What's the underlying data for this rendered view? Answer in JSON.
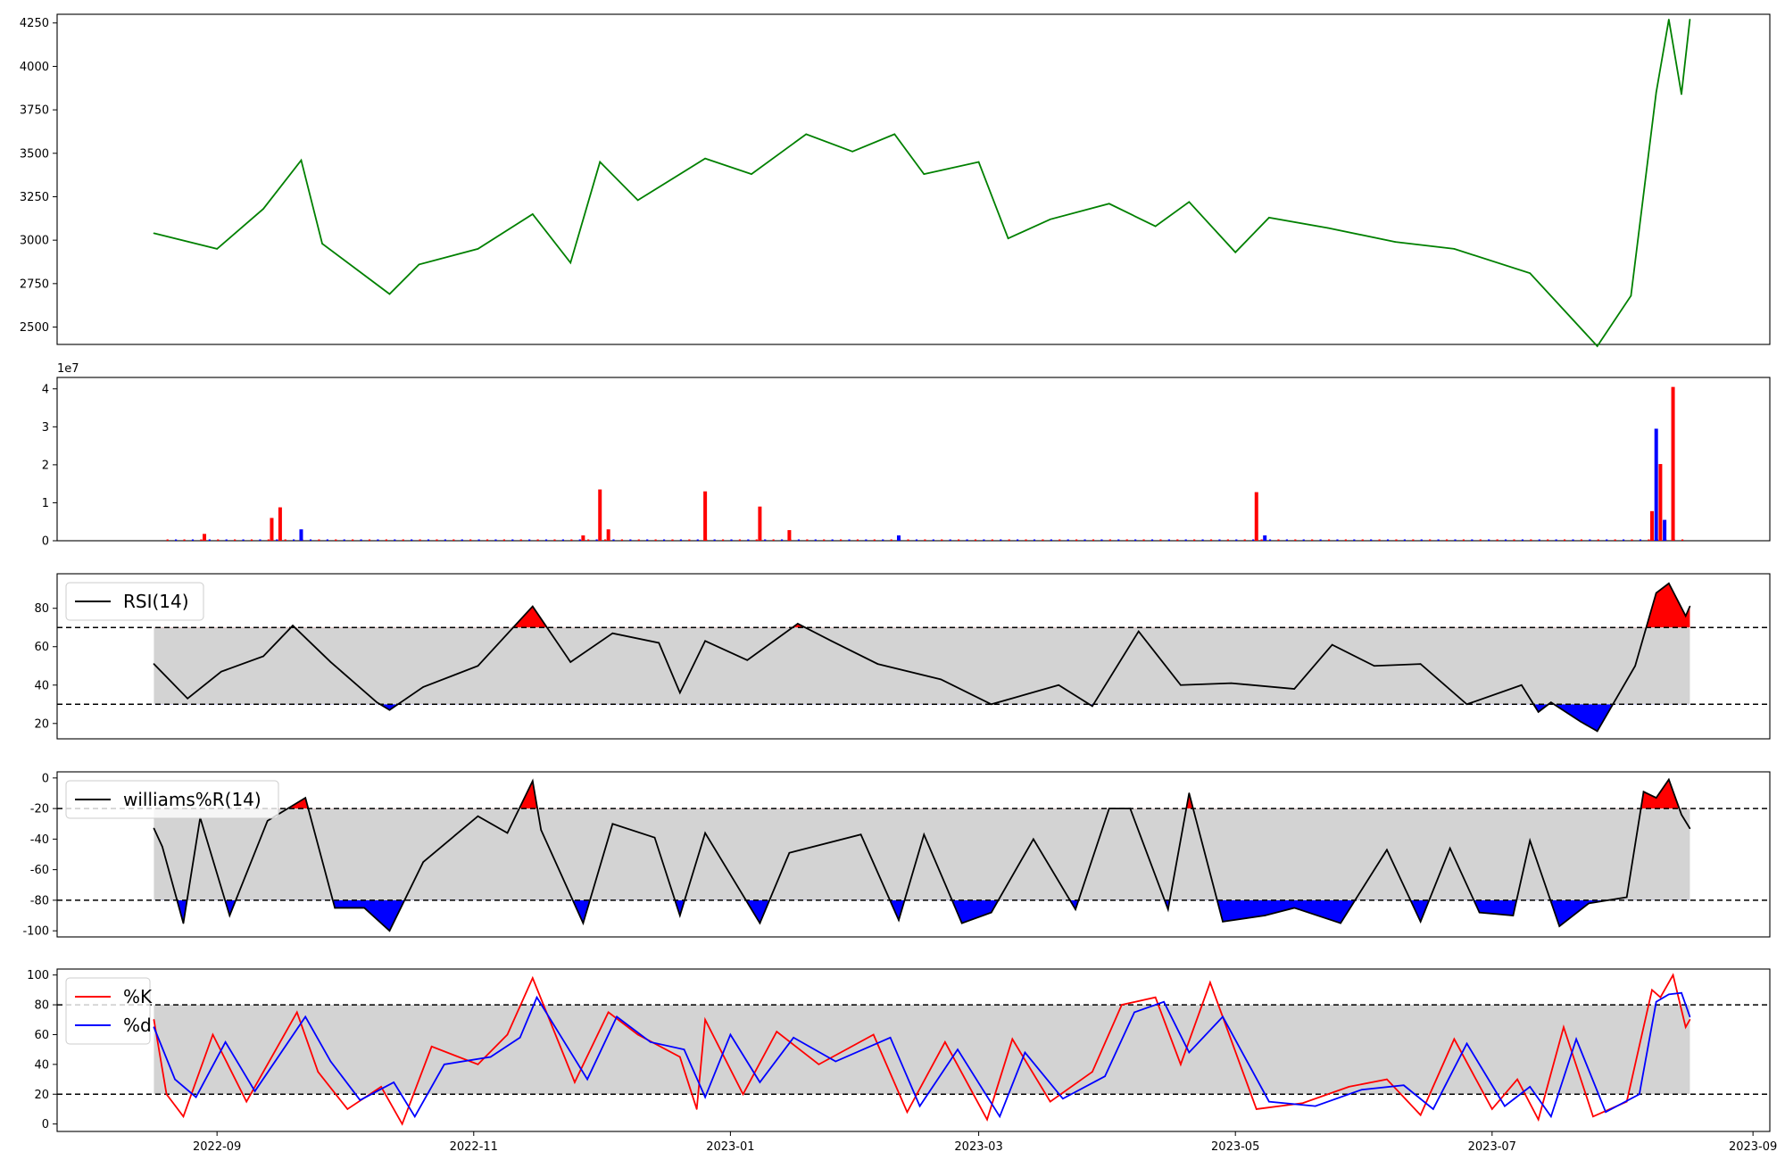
{
  "chart_data": [
    {
      "type": "line",
      "panel": "price",
      "color": "#008000",
      "ylim": [
        2400,
        4300
      ],
      "yticks": [
        2500,
        2750,
        3000,
        3250,
        3500,
        3750,
        4000,
        4250
      ],
      "x": [
        "2022-08-17",
        "2022-09-01",
        "2022-09-12",
        "2022-09-21",
        "2022-09-26",
        "2022-10-12",
        "2022-10-19",
        "2022-11-02",
        "2022-11-15",
        "2022-11-24",
        "2022-12-01",
        "2022-12-10",
        "2022-12-26",
        "2023-01-06",
        "2023-01-19",
        "2023-01-30",
        "2023-02-09",
        "2023-02-16",
        "2023-03-01",
        "2023-03-08",
        "2023-03-18",
        "2023-04-01",
        "2023-04-12",
        "2023-04-20",
        "2023-05-01",
        "2023-05-09",
        "2023-05-23",
        "2023-06-08",
        "2023-06-22",
        "2023-07-10",
        "2023-07-26",
        "2023-08-03",
        "2023-08-09",
        "2023-08-12",
        "2023-08-15",
        "2023-08-17"
      ],
      "y": [
        3040,
        2950,
        3180,
        3460,
        2980,
        2690,
        2860,
        2950,
        3150,
        2870,
        3450,
        3230,
        3470,
        3380,
        3610,
        3510,
        3610,
        3380,
        3450,
        3010,
        3120,
        3210,
        3080,
        3220,
        2930,
        3130,
        3070,
        2990,
        2950,
        2810,
        2390,
        2680,
        3850,
        4270,
        3840,
        4270
      ]
    },
    {
      "type": "bar",
      "panel": "volume",
      "exponent_label": "1e7",
      "ylim": [
        0,
        4.3
      ],
      "yticks": [
        0,
        1,
        2,
        3,
        4
      ],
      "colors": {
        "up": "#ff0000",
        "down": "#0000ff"
      },
      "x": [
        "2022-08-29",
        "2022-09-14",
        "2022-09-16",
        "2022-09-21",
        "2022-11-27",
        "2022-12-01",
        "2022-12-03",
        "2022-12-26",
        "2023-01-08",
        "2023-01-15",
        "2023-02-10",
        "2023-05-06",
        "2023-05-08",
        "2023-08-08",
        "2023-08-09",
        "2023-08-10",
        "2023-08-11",
        "2023-08-13"
      ],
      "values": [
        0.18,
        0.6,
        0.88,
        0.3,
        0.14,
        1.35,
        0.3,
        1.3,
        0.9,
        0.28,
        0.14,
        1.28,
        0.14,
        0.78,
        2.95,
        2.02,
        0.55,
        4.05
      ],
      "directions": [
        "up",
        "up",
        "up",
        "down",
        "up",
        "up",
        "up",
        "up",
        "up",
        "up",
        "down",
        "up",
        "down",
        "up",
        "down",
        "up",
        "down",
        "up"
      ]
    },
    {
      "type": "line",
      "panel": "rsi",
      "legend": "RSI(14)",
      "ylim": [
        12,
        98
      ],
      "yticks": [
        20,
        40,
        60,
        80
      ],
      "upper": 70,
      "lower": 30,
      "x": [
        "2022-08-17",
        "2022-08-25",
        "2022-09-02",
        "2022-09-12",
        "2022-09-19",
        "2022-09-28",
        "2022-10-09",
        "2022-10-12",
        "2022-10-20",
        "2022-11-02",
        "2022-11-15",
        "2022-11-24",
        "2022-12-04",
        "2022-12-15",
        "2022-12-20",
        "2022-12-26",
        "2023-01-05",
        "2023-01-17",
        "2023-01-25",
        "2023-02-05",
        "2023-02-20",
        "2023-03-04",
        "2023-03-20",
        "2023-03-28",
        "2023-04-08",
        "2023-04-18",
        "2023-04-30",
        "2023-05-15",
        "2023-05-24",
        "2023-06-03",
        "2023-06-14",
        "2023-06-25",
        "2023-07-08",
        "2023-07-12",
        "2023-07-15",
        "2023-07-22",
        "2023-07-26",
        "2023-08-04",
        "2023-08-09",
        "2023-08-12",
        "2023-08-16",
        "2023-08-17"
      ],
      "y": [
        51,
        33,
        47,
        55,
        71,
        52,
        31,
        27,
        39,
        50,
        81,
        52,
        67,
        62,
        36,
        63,
        53,
        72,
        63,
        51,
        43,
        30,
        40,
        29,
        68,
        40,
        41,
        38,
        61,
        50,
        51,
        30,
        40,
        26,
        31,
        21,
        16,
        50,
        88,
        93,
        76,
        81
      ]
    },
    {
      "type": "line",
      "panel": "williams",
      "legend": "williams%R(14)",
      "ylim": [
        -104,
        4
      ],
      "yticks": [
        -100,
        -80,
        -60,
        -40,
        -20,
        0
      ],
      "upper": -20,
      "lower": -80,
      "x": [
        "2022-08-17",
        "2022-08-19",
        "2022-08-24",
        "2022-08-28",
        "2022-09-04",
        "2022-09-13",
        "2022-09-22",
        "2022-09-29",
        "2022-10-06",
        "2022-10-12",
        "2022-10-20",
        "2022-11-02",
        "2022-11-09",
        "2022-11-15",
        "2022-11-17",
        "2022-11-27",
        "2022-12-04",
        "2022-12-14",
        "2022-12-20",
        "2022-12-26",
        "2023-01-08",
        "2023-01-15",
        "2023-02-01",
        "2023-02-10",
        "2023-02-16",
        "2023-02-25",
        "2023-03-04",
        "2023-03-14",
        "2023-03-24",
        "2023-04-01",
        "2023-04-06",
        "2023-04-15",
        "2023-04-20",
        "2023-04-28",
        "2023-05-08",
        "2023-05-15",
        "2023-05-26",
        "2023-06-06",
        "2023-06-14",
        "2023-06-21",
        "2023-06-28",
        "2023-07-06",
        "2023-07-10",
        "2023-07-17",
        "2023-07-24",
        "2023-08-02",
        "2023-08-06",
        "2023-08-09",
        "2023-08-12",
        "2023-08-15",
        "2023-08-17"
      ],
      "y": [
        -33,
        -45,
        -95,
        -26,
        -90,
        -28,
        -13,
        -85,
        -85,
        -100,
        -55,
        -25,
        -36,
        -2,
        -34,
        -95,
        -30,
        -39,
        -90,
        -36,
        -95,
        -49,
        -37,
        -93,
        -37,
        -95,
        -88,
        -40,
        -86,
        -20,
        -20,
        -86,
        -10,
        -94,
        -90,
        -85,
        -95,
        -47,
        -94,
        -46,
        -88,
        -90,
        -41,
        -97,
        -82,
        -78,
        -9,
        -13,
        -1,
        -24,
        -33
      ]
    },
    {
      "type": "line",
      "panel": "stochastic",
      "ylim": [
        -5,
        104
      ],
      "yticks": [
        0,
        20,
        40,
        60,
        80,
        100
      ],
      "upper": 80,
      "lower": 20,
      "series": [
        {
          "name": "%K",
          "color": "#ff0000",
          "x": [
            "2022-08-17",
            "2022-08-20",
            "2022-08-24",
            "2022-08-31",
            "2022-09-08",
            "2022-09-20",
            "2022-09-25",
            "2022-10-02",
            "2022-10-10",
            "2022-10-15",
            "2022-10-22",
            "2022-11-02",
            "2022-11-09",
            "2022-11-15",
            "2022-11-25",
            "2022-12-03",
            "2022-12-10",
            "2022-12-20",
            "2022-12-24",
            "2022-12-26",
            "2023-01-04",
            "2023-01-12",
            "2023-01-22",
            "2023-02-04",
            "2023-02-12",
            "2023-02-21",
            "2023-03-03",
            "2023-03-09",
            "2023-03-18",
            "2023-03-28",
            "2023-04-04",
            "2023-04-12",
            "2023-04-18",
            "2023-04-25",
            "2023-05-06",
            "2023-05-17",
            "2023-05-28",
            "2023-06-06",
            "2023-06-14",
            "2023-06-22",
            "2023-07-01",
            "2023-07-07",
            "2023-07-12",
            "2023-07-18",
            "2023-07-25",
            "2023-08-02",
            "2023-08-08",
            "2023-08-10",
            "2023-08-13",
            "2023-08-16",
            "2023-08-17"
          ],
          "y": [
            70,
            20,
            5,
            60,
            15,
            75,
            35,
            10,
            25,
            0,
            52,
            40,
            60,
            98,
            28,
            75,
            60,
            45,
            10,
            70,
            20,
            62,
            40,
            60,
            8,
            55,
            3,
            57,
            15,
            35,
            80,
            85,
            40,
            95,
            10,
            14,
            25,
            30,
            6,
            57,
            10,
            30,
            3,
            65,
            5,
            15,
            90,
            85,
            100,
            65,
            70
          ]
        },
        {
          "name": "%d",
          "color": "#0000ff",
          "x": [
            "2022-08-17",
            "2022-08-22",
            "2022-08-27",
            "2022-09-03",
            "2022-09-10",
            "2022-09-22",
            "2022-09-28",
            "2022-10-05",
            "2022-10-13",
            "2022-10-18",
            "2022-10-25",
            "2022-11-05",
            "2022-11-12",
            "2022-11-16",
            "2022-11-28",
            "2022-12-05",
            "2022-12-13",
            "2022-12-21",
            "2022-12-26",
            "2023-01-01",
            "2023-01-08",
            "2023-01-16",
            "2023-01-26",
            "2023-02-08",
            "2023-02-15",
            "2023-02-24",
            "2023-03-06",
            "2023-03-12",
            "2023-03-21",
            "2023-03-31",
            "2023-04-07",
            "2023-04-14",
            "2023-04-20",
            "2023-04-28",
            "2023-05-09",
            "2023-05-20",
            "2023-05-31",
            "2023-06-10",
            "2023-06-17",
            "2023-06-25",
            "2023-07-04",
            "2023-07-10",
            "2023-07-15",
            "2023-07-21",
            "2023-07-28",
            "2023-08-05",
            "2023-08-09",
            "2023-08-12",
            "2023-08-15",
            "2023-08-17"
          ],
          "y": [
            65,
            30,
            18,
            55,
            22,
            72,
            42,
            16,
            28,
            5,
            40,
            45,
            58,
            85,
            30,
            72,
            55,
            50,
            18,
            60,
            28,
            58,
            42,
            58,
            12,
            50,
            5,
            48,
            17,
            32,
            75,
            82,
            48,
            72,
            15,
            12,
            23,
            26,
            10,
            54,
            12,
            25,
            5,
            57,
            8,
            20,
            82,
            87,
            88,
            72
          ]
        }
      ]
    }
  ],
  "x_axis": {
    "min": "2022-07-25",
    "max": "2023-09-05",
    "tick_labels": [
      "2022-09",
      "2022-11",
      "2023-01",
      "2023-03",
      "2023-05",
      "2023-07",
      "2023-09"
    ]
  }
}
